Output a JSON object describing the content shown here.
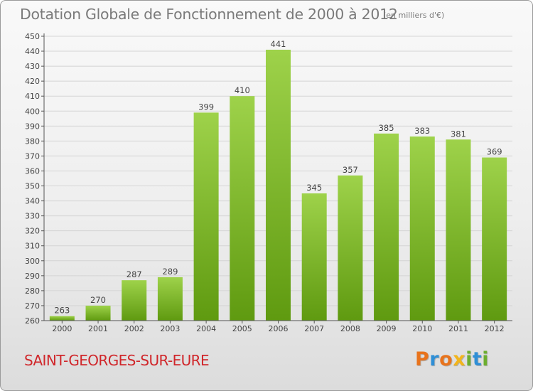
{
  "title": "Dotation Globale de Fonctionnement de 2000 à 2012",
  "subtitle": "(en milliers d'€)",
  "commune": "SAINT-GEORGES-SUR-EURE",
  "brand": {
    "letters": [
      {
        "char": "P",
        "color": "#e8731c"
      },
      {
        "char": "r",
        "color": "#2f8fd6"
      },
      {
        "char": "o",
        "color": "#e8731c"
      },
      {
        "char": "x",
        "color": "#f2b51b"
      },
      {
        "char": "i",
        "color": "#6cae2e"
      },
      {
        "char": "t",
        "color": "#2f8fd6"
      },
      {
        "char": "i",
        "color": "#6cae2e"
      }
    ]
  },
  "colors": {
    "bar_light": "#9ed24a",
    "bar_dark": "#5f9a10",
    "grid": "#d4d4d4",
    "axis": "#555555",
    "text": "#444444",
    "title": "#7a7a7a",
    "commune": "#d0262a"
  },
  "chart_data": {
    "type": "bar",
    "categories": [
      "2000",
      "2001",
      "2002",
      "2003",
      "2004",
      "2005",
      "2006",
      "2007",
      "2008",
      "2009",
      "2010",
      "2011",
      "2012"
    ],
    "values": [
      263,
      270,
      287,
      289,
      399,
      410,
      441,
      345,
      357,
      385,
      383,
      381,
      369
    ],
    "ylim": [
      260,
      450
    ],
    "ytick_step": 10,
    "grid": true,
    "xlabel": "",
    "ylabel": ""
  }
}
